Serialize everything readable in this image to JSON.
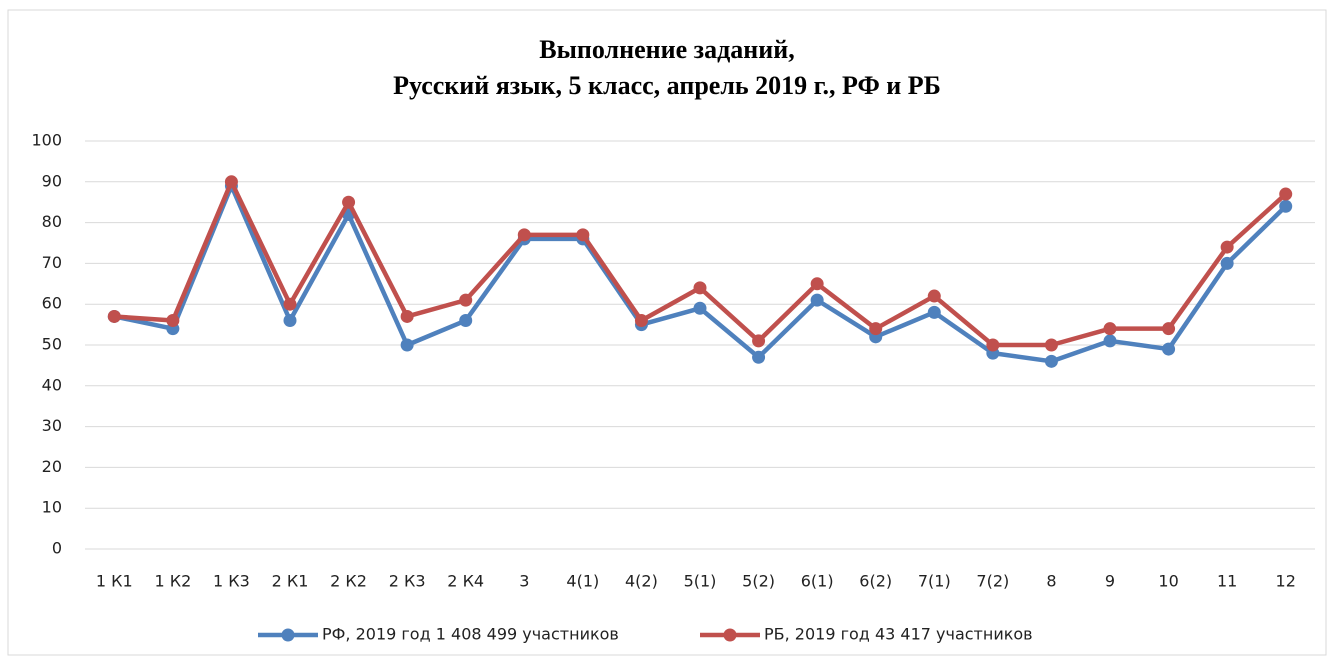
{
  "chart_data": {
    "type": "line",
    "title": [
      "Выполнение заданий,",
      "Русский язык, 5 класс, апрель 2019 г., РФ и РБ"
    ],
    "categories": [
      "1 К1",
      "1 К2",
      "1 К3",
      "2 К1",
      "2 К2",
      "2 К3",
      "2 К4",
      "3",
      "4(1)",
      "4(2)",
      "5(1)",
      "5(2)",
      "6(1)",
      "6(2)",
      "7(1)",
      "7(2)",
      "8",
      "9",
      "10",
      "11",
      "12"
    ],
    "series": [
      {
        "name": "РФ, 2019 год 1 408 499 участников",
        "color": "#4f81bd",
        "values": [
          57,
          54,
          89,
          56,
          82,
          50,
          56,
          76,
          76,
          55,
          59,
          47,
          61,
          52,
          58,
          48,
          46,
          51,
          49,
          70,
          84
        ]
      },
      {
        "name": "РБ, 2019 год 43 417 участников",
        "color": "#c0504d",
        "values": [
          57,
          56,
          90,
          60,
          85,
          57,
          61,
          77,
          77,
          56,
          64,
          51,
          65,
          54,
          62,
          50,
          50,
          54,
          54,
          74,
          87
        ]
      }
    ],
    "ylim": [
      0,
      100
    ],
    "yticks": [
      0,
      10,
      20,
      30,
      40,
      50,
      60,
      70,
      80,
      90,
      100
    ],
    "grid": true,
    "legend": "bottom"
  }
}
